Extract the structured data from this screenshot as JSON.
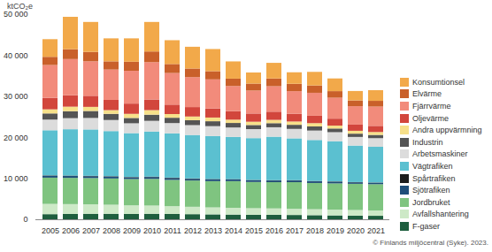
{
  "chart_data": {
    "type": "bar",
    "stacked": true,
    "y_label": "ktCO₂e",
    "caption": "© Finlands miljöcentral (Syke). 2023.",
    "categories": [
      "2005",
      "2006",
      "2007",
      "2008",
      "2009",
      "2010",
      "2011",
      "2012",
      "2013",
      "2014",
      "2015",
      "2016",
      "2017",
      "2018",
      "2019",
      "2020",
      "2021"
    ],
    "ylim": [
      0,
      50000
    ],
    "yticks": [
      0,
      {
        "value": 10000,
        "label": "10 000"
      },
      {
        "value": 20000,
        "label": "20 000"
      },
      {
        "value": 30000,
        "label": "30 000"
      },
      {
        "value": 40000,
        "label": "40 000"
      },
      {
        "value": 50000,
        "label": "50 000"
      }
    ],
    "grid": false,
    "legend": "right",
    "series": [
      {
        "name": "Konsumtionsel",
        "color": "#f2a94a",
        "values": [
          4300,
          7900,
          7300,
          5600,
          5700,
          7200,
          5800,
          5300,
          5400,
          4200,
          2700,
          3800,
          2800,
          3300,
          3100,
          2300,
          2600
        ]
      },
      {
        "name": "Elvärme",
        "color": "#c9602a",
        "values": [
          2000,
          2400,
          2300,
          2000,
          2200,
          2600,
          2200,
          2100,
          2000,
          1800,
          1700,
          1900,
          1800,
          1800,
          1600,
          1400,
          1400
        ]
      },
      {
        "name": "Fjärrvärme",
        "color": "#f28b7b",
        "values": [
          8000,
          8800,
          8400,
          7400,
          8000,
          9100,
          7700,
          7300,
          7100,
          6100,
          5600,
          6200,
          5500,
          5600,
          5100,
          4500,
          4700
        ]
      },
      {
        "name": "Oljevärme",
        "color": "#d2463c",
        "values": [
          2800,
          2800,
          2700,
          2500,
          2500,
          2600,
          2300,
          2300,
          2200,
          2100,
          2000,
          2000,
          1900,
          1800,
          1700,
          1500,
          1500
        ]
      },
      {
        "name": "Andra uppvärmning",
        "color": "#f7e08a",
        "values": [
          1000,
          1100,
          1000,
          900,
          1000,
          1100,
          900,
          900,
          900,
          800,
          800,
          800,
          800,
          800,
          700,
          700,
          700
        ]
      },
      {
        "name": "Industrin",
        "color": "#555555",
        "values": [
          1500,
          1700,
          1700,
          1500,
          1300,
          1500,
          1300,
          1200,
          1200,
          1100,
          1000,
          1000,
          1000,
          1000,
          900,
          800,
          800
        ]
      },
      {
        "name": "Arbetsmaskiner",
        "color": "#dcdcdc",
        "values": [
          2600,
          2700,
          2800,
          2700,
          2400,
          2600,
          2500,
          2400,
          2400,
          2300,
          2200,
          2300,
          2300,
          2300,
          2200,
          2100,
          2100
        ]
      },
      {
        "name": "Vägtrafiken",
        "color": "#5bc0d0",
        "values": [
          11000,
          11300,
          11300,
          11000,
          10700,
          11000,
          10800,
          10600,
          10500,
          10300,
          10200,
          10600,
          10200,
          10000,
          9800,
          8900,
          8700
        ]
      },
      {
        "name": "Spårtrafiken",
        "color": "#1c1c1c",
        "values": [
          100,
          100,
          100,
          100,
          100,
          100,
          100,
          100,
          100,
          80,
          80,
          80,
          80,
          80,
          80,
          70,
          70
        ]
      },
      {
        "name": "Sjötrafiken",
        "color": "#1f4e79",
        "values": [
          450,
          450,
          450,
          450,
          400,
          450,
          450,
          400,
          400,
          400,
          400,
          400,
          400,
          400,
          400,
          350,
          350
        ]
      },
      {
        "name": "Jordbruket",
        "color": "#7fc480",
        "values": [
          6400,
          6400,
          6400,
          6400,
          6400,
          6500,
          6400,
          6400,
          6400,
          6500,
          6400,
          6400,
          6500,
          6400,
          6400,
          6400,
          6400
        ]
      },
      {
        "name": "Avfallshantering",
        "color": "#cde9c7",
        "values": [
          2500,
          2400,
          2300,
          2200,
          2100,
          2000,
          1900,
          1800,
          1700,
          1650,
          1600,
          1550,
          1500,
          1450,
          1400,
          1350,
          1300
        ]
      },
      {
        "name": "F-gaser",
        "color": "#1e5e3e",
        "values": [
          1250,
          1300,
          1350,
          1350,
          1300,
          1350,
          1300,
          1250,
          1200,
          1150,
          1100,
          1100,
          1050,
          1000,
          950,
          900,
          850
        ]
      }
    ]
  }
}
